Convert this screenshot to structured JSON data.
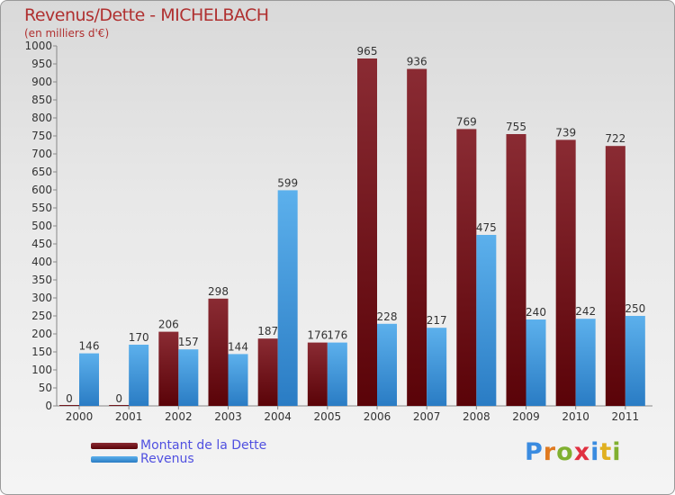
{
  "header": {
    "title": "Revenus/Dette - MICHELBACH",
    "subtitle": "(en milliers d'€)"
  },
  "brand": {
    "letters": [
      "P",
      "r",
      "o",
      "x",
      "i",
      "t",
      "i"
    ],
    "colors": [
      "#3a8be0",
      "#e07a20",
      "#80b030",
      "#e03040",
      "#3a8be0",
      "#e0b020",
      "#80b030"
    ]
  },
  "legend": {
    "items": [
      {
        "label": "Montant de la Dette",
        "color": "#6e0f16"
      },
      {
        "label": "Revenus",
        "color": "#3d98dd"
      }
    ]
  },
  "chart_data": {
    "type": "bar",
    "title": "Revenus/Dette - MICHELBACH",
    "ylabel": "(en milliers d'€)",
    "xlabel": "",
    "categories": [
      "2000",
      "2001",
      "2002",
      "2003",
      "2004",
      "2005",
      "2006",
      "2007",
      "2008",
      "2009",
      "2010",
      "2011"
    ],
    "series": [
      {
        "name": "Montant de la Dette",
        "color": "#6e0f16",
        "values": [
          0,
          0,
          206,
          298,
          187,
          176,
          965,
          936,
          769,
          755,
          739,
          722
        ]
      },
      {
        "name": "Revenus",
        "color": "#3d98dd",
        "values": [
          146,
          170,
          157,
          144,
          599,
          176,
          228,
          217,
          475,
          240,
          242,
          250
        ]
      }
    ],
    "ylim": [
      0,
      1000
    ],
    "yticks": [
      0,
      50,
      100,
      150,
      200,
      250,
      300,
      350,
      400,
      450,
      500,
      550,
      600,
      650,
      700,
      750,
      800,
      850,
      900,
      950,
      1000
    ],
    "grid": false,
    "legend_position": "bottom-left"
  }
}
